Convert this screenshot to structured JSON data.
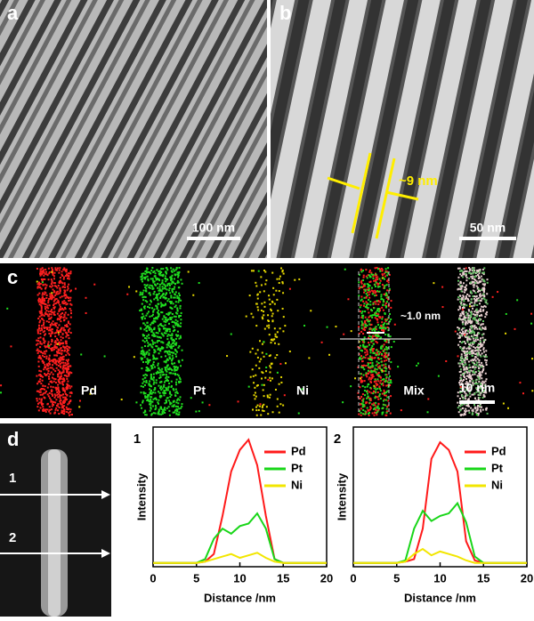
{
  "panel_a": {
    "label": "a",
    "scale_bar": "100 nm"
  },
  "panel_b": {
    "label": "b",
    "scale_bar": "50 nm",
    "width_label": "~9 nm"
  },
  "panel_c": {
    "label": "c",
    "maps": [
      "Pd",
      "Pt",
      "Ni",
      "Mix"
    ],
    "gap_label": "~1.0 nm",
    "scale_bar": "10 nm"
  },
  "panel_d": {
    "label": "d",
    "line_labels": [
      "1",
      "2"
    ]
  },
  "chart_data": [
    {
      "type": "line",
      "title": "1",
      "x_label": "Distance /nm",
      "y_label": "Intensity",
      "x": [
        0,
        1,
        2,
        3,
        4,
        5,
        6,
        7,
        8,
        9,
        10,
        11,
        12,
        13,
        14,
        15,
        16,
        17,
        18,
        19,
        20
      ],
      "xlim": [
        0,
        20
      ],
      "xticks": [
        0,
        5,
        10,
        15,
        20
      ],
      "ylim": [
        0,
        110
      ],
      "legend": "top-right",
      "series": [
        {
          "name": "Pd",
          "color": "#ff1a1a",
          "values": [
            3,
            3,
            3,
            3,
            3,
            3,
            4,
            10,
            40,
            75,
            92,
            100,
            80,
            40,
            6,
            3,
            3,
            3,
            3,
            3,
            3
          ]
        },
        {
          "name": "Pt",
          "color": "#19d619",
          "values": [
            3,
            3,
            3,
            3,
            3,
            3,
            6,
            22,
            30,
            26,
            32,
            34,
            42,
            30,
            6,
            3,
            3,
            3,
            3,
            3,
            3
          ]
        },
        {
          "name": "Ni",
          "color": "#f2e600",
          "values": [
            3,
            3,
            3,
            3,
            3,
            3,
            4,
            6,
            8,
            10,
            7,
            9,
            11,
            7,
            4,
            3,
            3,
            3,
            3,
            3,
            3
          ]
        }
      ]
    },
    {
      "type": "line",
      "title": "2",
      "x_label": "Distance /nm",
      "y_label": "Intensity",
      "x": [
        0,
        1,
        2,
        3,
        4,
        5,
        6,
        7,
        8,
        9,
        10,
        11,
        12,
        13,
        14,
        15,
        16,
        17,
        18,
        19,
        20
      ],
      "xlim": [
        0,
        20
      ],
      "xticks": [
        0,
        5,
        10,
        15,
        20
      ],
      "ylim": [
        0,
        110
      ],
      "legend": "top-right",
      "series": [
        {
          "name": "Pd",
          "color": "#ff1a1a",
          "values": [
            3,
            3,
            3,
            3,
            3,
            3,
            4,
            6,
            30,
            85,
            98,
            92,
            75,
            20,
            5,
            3,
            3,
            3,
            3,
            3,
            3
          ]
        },
        {
          "name": "Pt",
          "color": "#19d619",
          "values": [
            3,
            3,
            3,
            3,
            3,
            3,
            5,
            30,
            44,
            36,
            40,
            42,
            50,
            35,
            8,
            3,
            3,
            3,
            3,
            3,
            3
          ]
        },
        {
          "name": "Ni",
          "color": "#f2e600",
          "values": [
            3,
            3,
            3,
            3,
            3,
            3,
            4,
            10,
            14,
            9,
            12,
            10,
            8,
            5,
            3,
            3,
            3,
            3,
            3,
            3,
            3
          ]
        }
      ]
    }
  ]
}
